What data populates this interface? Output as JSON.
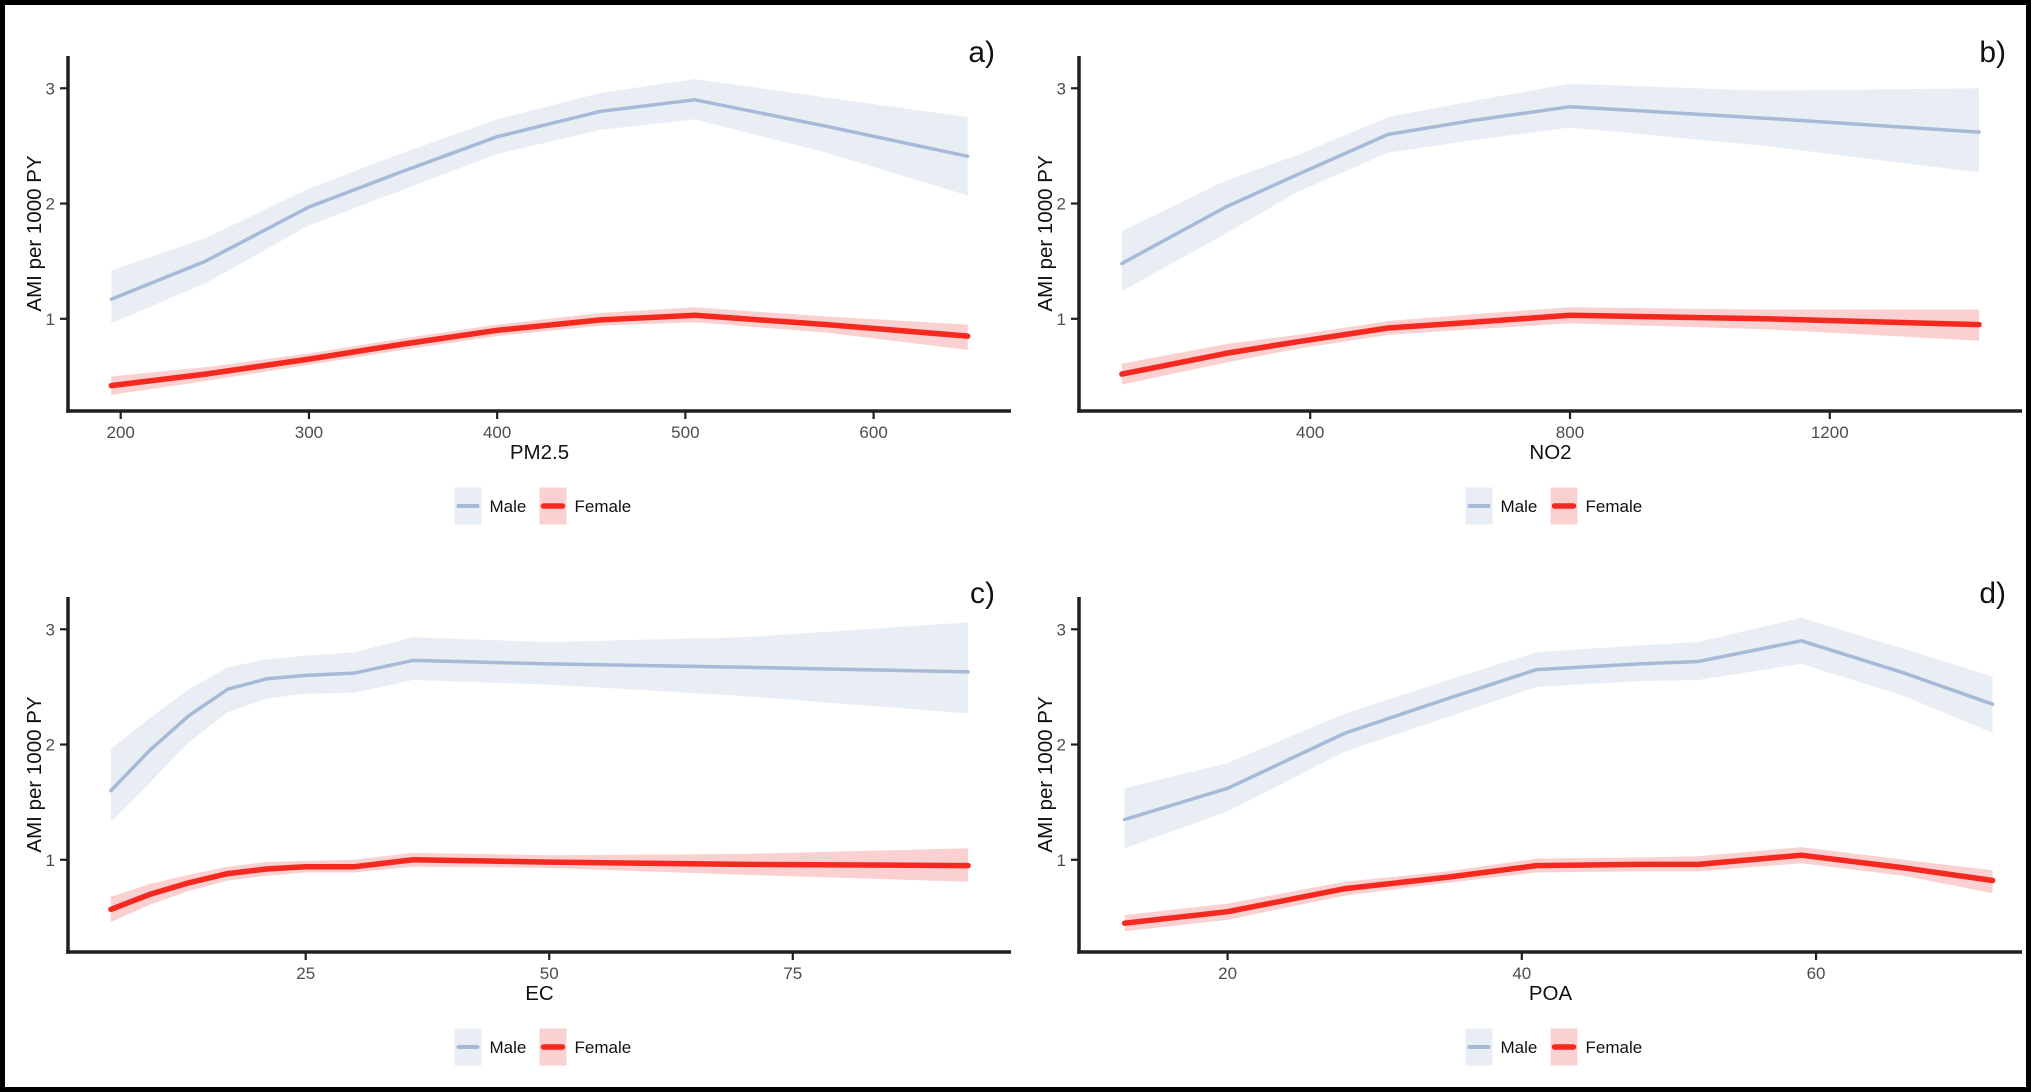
{
  "figure": {
    "ylabel": "AMI per 1000 PY",
    "yticks": [
      1,
      2,
      3
    ],
    "ylim": [
      0.2,
      3.28
    ],
    "legend": [
      {
        "name": "Male",
        "line_color": "#a6bad8",
        "band_color": "#e9edf4"
      },
      {
        "name": "Female",
        "line_color": "#f5291f",
        "band_color": "#fbd0d0"
      }
    ],
    "legend_position": "bottom-center",
    "grid": "off",
    "background": "#ffffff",
    "colors": {
      "axis": "#202020",
      "tick_label": "#4d4d4d",
      "text": "#111111",
      "border": "#000000"
    }
  },
  "chart_data": [
    {
      "type": "line",
      "panel_id": "a",
      "panel_label": "a)",
      "xlabel": "PM2.5",
      "xticks": [
        200,
        300,
        400,
        500,
        600
      ],
      "xlim": [
        172,
        673
      ],
      "x": [
        195,
        245,
        300,
        350,
        400,
        455,
        505,
        575,
        650
      ],
      "series": [
        {
          "name": "Male",
          "values": [
            1.17,
            1.5,
            1.97,
            2.28,
            2.58,
            2.8,
            2.9,
            2.67,
            2.41
          ],
          "lower": [
            0.96,
            1.31,
            1.81,
            2.12,
            2.43,
            2.64,
            2.73,
            2.44,
            2.07
          ],
          "upper": [
            1.42,
            1.7,
            2.13,
            2.44,
            2.73,
            2.96,
            3.08,
            2.92,
            2.75
          ]
        },
        {
          "name": "Female",
          "values": [
            0.42,
            0.52,
            0.65,
            0.78,
            0.9,
            0.99,
            1.03,
            0.95,
            0.85
          ],
          "lower": [
            0.34,
            0.46,
            0.6,
            0.73,
            0.85,
            0.94,
            0.97,
            0.88,
            0.73
          ],
          "upper": [
            0.5,
            0.58,
            0.7,
            0.83,
            0.95,
            1.05,
            1.1,
            1.02,
            0.95
          ]
        }
      ]
    },
    {
      "type": "line",
      "panel_id": "b",
      "panel_label": "b)",
      "xlabel": "NO2",
      "xticks": [
        400,
        800,
        1200
      ],
      "xlim": [
        44,
        1496
      ],
      "x": [
        110,
        270,
        380,
        520,
        650,
        800,
        1100,
        1430
      ],
      "series": [
        {
          "name": "Male",
          "values": [
            1.48,
            1.97,
            2.25,
            2.6,
            2.72,
            2.84,
            2.74,
            2.62
          ],
          "lower": [
            1.24,
            1.74,
            2.1,
            2.44,
            2.55,
            2.66,
            2.5,
            2.27
          ],
          "upper": [
            1.76,
            2.2,
            2.42,
            2.75,
            2.89,
            3.04,
            2.98,
            3.0
          ]
        },
        {
          "name": "Female",
          "values": [
            0.52,
            0.7,
            0.8,
            0.92,
            0.97,
            1.03,
            1.0,
            0.95
          ],
          "lower": [
            0.43,
            0.62,
            0.74,
            0.86,
            0.91,
            0.96,
            0.91,
            0.81
          ],
          "upper": [
            0.61,
            0.78,
            0.86,
            0.98,
            1.04,
            1.1,
            1.08,
            1.08
          ]
        }
      ]
    },
    {
      "type": "line",
      "panel_id": "c",
      "panel_label": "c)",
      "xlabel": "EC",
      "xticks": [
        25,
        50,
        75
      ],
      "xlim": [
        0.6,
        97.4
      ],
      "x": [
        5,
        9,
        13,
        17,
        21,
        25,
        30,
        36,
        50,
        70,
        93
      ],
      "series": [
        {
          "name": "Male",
          "values": [
            1.6,
            1.95,
            2.25,
            2.48,
            2.57,
            2.6,
            2.62,
            2.73,
            2.7,
            2.67,
            2.63
          ],
          "lower": [
            1.33,
            1.67,
            2.02,
            2.28,
            2.4,
            2.44,
            2.45,
            2.56,
            2.52,
            2.42,
            2.27
          ],
          "upper": [
            1.96,
            2.23,
            2.48,
            2.67,
            2.74,
            2.77,
            2.8,
            2.93,
            2.89,
            2.93,
            3.06
          ]
        },
        {
          "name": "Female",
          "values": [
            0.57,
            0.7,
            0.8,
            0.88,
            0.92,
            0.94,
            0.94,
            1.0,
            0.98,
            0.96,
            0.95
          ],
          "lower": [
            0.46,
            0.61,
            0.73,
            0.82,
            0.86,
            0.89,
            0.89,
            0.94,
            0.93,
            0.87,
            0.81
          ],
          "upper": [
            0.68,
            0.79,
            0.87,
            0.94,
            0.98,
            0.99,
            1.0,
            1.06,
            1.04,
            1.05,
            1.1
          ]
        }
      ]
    },
    {
      "type": "line",
      "panel_id": "d",
      "panel_label": "d)",
      "xlabel": "POA",
      "xticks": [
        20,
        40,
        60
      ],
      "xlim": [
        9.9,
        74
      ],
      "x": [
        13,
        20,
        28,
        35,
        41,
        48,
        52,
        59,
        66,
        72
      ],
      "series": [
        {
          "name": "Male",
          "values": [
            1.35,
            1.62,
            2.1,
            2.4,
            2.65,
            2.7,
            2.72,
            2.9,
            2.62,
            2.35
          ],
          "lower": [
            1.1,
            1.42,
            1.94,
            2.24,
            2.5,
            2.55,
            2.56,
            2.7,
            2.42,
            2.1
          ],
          "upper": [
            1.62,
            1.84,
            2.27,
            2.56,
            2.8,
            2.86,
            2.89,
            3.1,
            2.83,
            2.59
          ]
        },
        {
          "name": "Female",
          "values": [
            0.45,
            0.55,
            0.75,
            0.85,
            0.95,
            0.96,
            0.96,
            1.04,
            0.93,
            0.82
          ],
          "lower": [
            0.38,
            0.48,
            0.69,
            0.8,
            0.89,
            0.9,
            0.9,
            0.97,
            0.86,
            0.71
          ],
          "upper": [
            0.52,
            0.62,
            0.81,
            0.9,
            1.01,
            1.02,
            1.03,
            1.11,
            1.0,
            0.91
          ]
        }
      ]
    }
  ]
}
